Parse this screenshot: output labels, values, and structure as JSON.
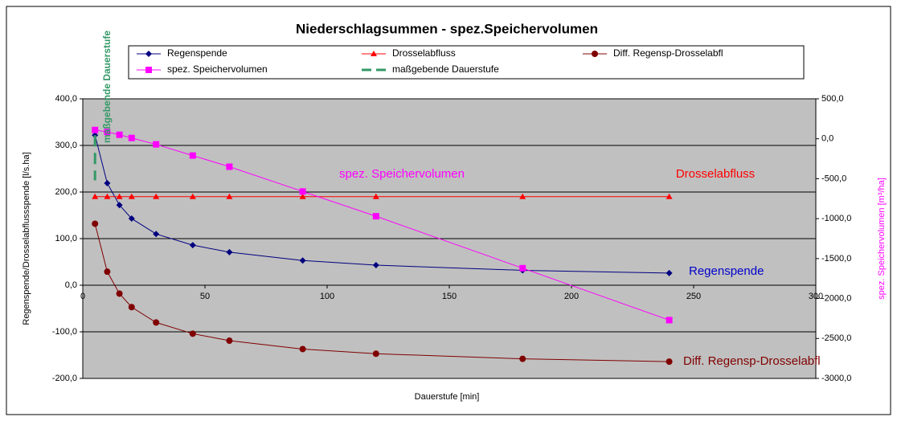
{
  "chart_data": {
    "type": "line",
    "title": "Niederschlagsummen - spez.Speichervolumen",
    "x_label": "Dauerstufe [min]",
    "y_label": "Regenspende/Drosselabflussspende [l/s.ha]",
    "y2_label": "spez. Speichervolumen [m³/ha]",
    "x": [
      5,
      10,
      15,
      20,
      30,
      45,
      60,
      90,
      120,
      180,
      240
    ],
    "series": [
      {
        "name": "Regenspende",
        "color": "#000080",
        "marker": "diamond",
        "values": [
          322,
          219,
          172,
          143,
          110,
          86,
          71,
          53,
          43,
          32,
          26
        ]
      },
      {
        "name": "Drosselabfluss",
        "color": "#ff0000",
        "marker": "triangle",
        "values": [
          190,
          190,
          190,
          190,
          190,
          190,
          190,
          190,
          190,
          190,
          190
        ]
      },
      {
        "name": "Diff. Regensp-Drosselabfl",
        "color": "#800000",
        "marker": "circle",
        "values": [
          132,
          29,
          -18,
          -47,
          -80,
          -104,
          -119,
          -137,
          -147,
          -158,
          -164
        ]
      },
      {
        "name": "spez. Speichervolumen",
        "color": "#ff00ff",
        "marker": "square",
        "axis": "y2",
        "values": [
          110,
          85,
          50,
          10,
          -70,
          -210,
          -350,
          -660,
          -970,
          -1620,
          -2270
        ]
      },
      {
        "name": "maßgebende Dauerstufe",
        "color": "#339966",
        "marker": "dash",
        "x": [
          5,
          5
        ],
        "values": [
          322,
          225
        ]
      }
    ],
    "annotations": [
      {
        "text": "spez. Speichervolumen",
        "color": "#ff00ff"
      },
      {
        "text": "Drosselabfluss",
        "color": "#ff0000"
      },
      {
        "text": "Regenspende",
        "color": "#0000cc"
      },
      {
        "text": "Diff. Regensp-Drosselabfl",
        "color": "#800000"
      },
      {
        "text": "maßgebende Dauerstufe",
        "color": "#339966"
      }
    ],
    "xlim": [
      0,
      300
    ],
    "xticks": [
      0,
      50,
      100,
      150,
      200,
      250,
      300
    ],
    "ylim": [
      -200,
      400
    ],
    "yticks": [
      {
        "value": -200,
        "label": "-200,0"
      },
      {
        "value": -100,
        "label": "-100,0"
      },
      {
        "value": 0,
        "label": "0,0"
      },
      {
        "value": 100,
        "label": "100,0"
      },
      {
        "value": 200,
        "label": "200,0"
      },
      {
        "value": 300,
        "label": "300,0"
      },
      {
        "value": 400,
        "label": "400,0"
      }
    ],
    "y2lim": [
      -3000,
      500
    ],
    "y2ticks": [
      {
        "value": -3000,
        "label": "-3000,0"
      },
      {
        "value": -2500,
        "label": "-2500,0"
      },
      {
        "value": -2000,
        "label": "-2000,0"
      },
      {
        "value": -1500,
        "label": "-1500,0"
      },
      {
        "value": -1000,
        "label": "-1000,0"
      },
      {
        "value": -500,
        "label": "-500,0"
      },
      {
        "value": 0,
        "label": "0,0"
      },
      {
        "value": 500,
        "label": "500,0"
      }
    ],
    "grid": true,
    "legend": "top"
  }
}
